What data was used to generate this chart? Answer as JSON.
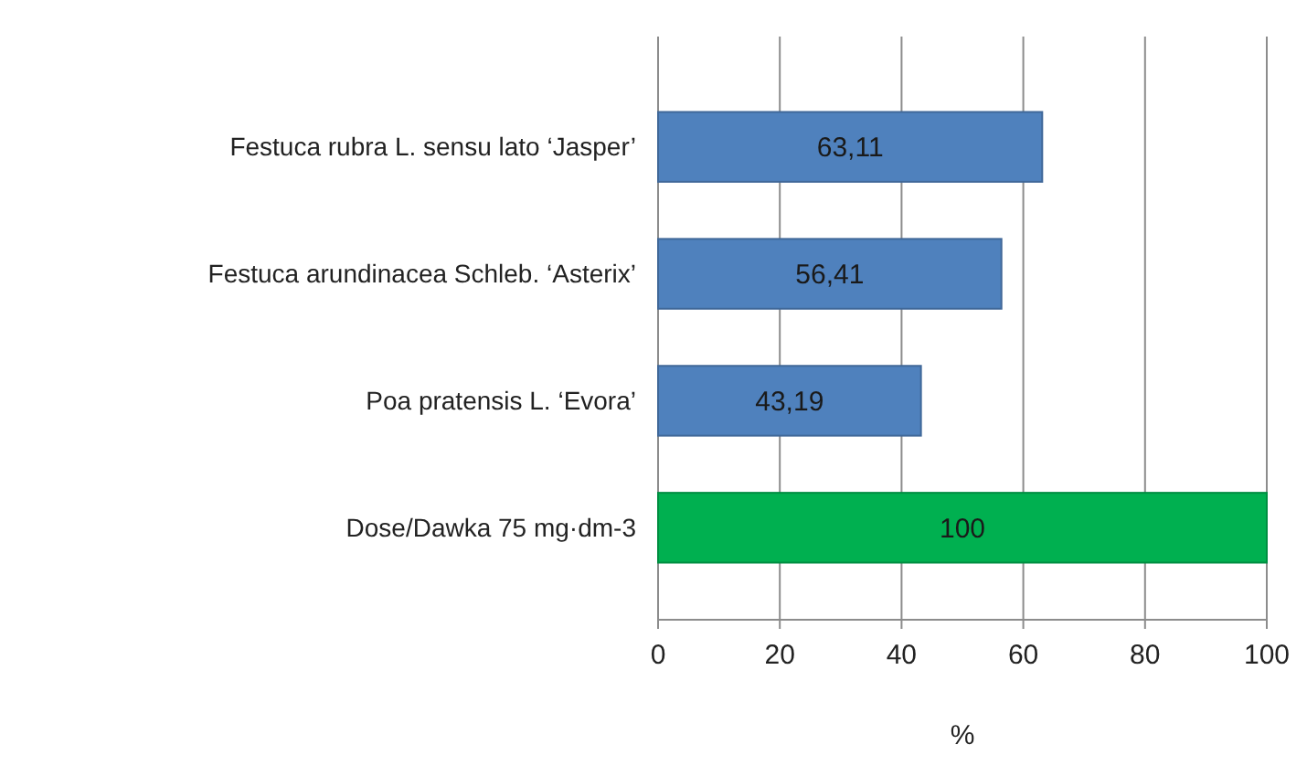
{
  "chart_data": {
    "type": "bar",
    "orientation": "horizontal",
    "categories": [
      "Festuca rubra L. sensu lato ‘Jasper’",
      "Festuca arundinacea Schleb. ‘Asterix’",
      "Poa pratensis L. ‘Evora’",
      "Dose/Dawka 75 mg·dm-3"
    ],
    "values": [
      63.11,
      56.41,
      43.19,
      100
    ],
    "value_labels": [
      "63,11",
      "56,41",
      "43,19",
      "100"
    ],
    "colors": [
      "#4f81bd",
      "#4f81bd",
      "#4f81bd",
      "#00b050"
    ],
    "xlim": [
      0,
      100
    ],
    "xticks": [
      0,
      20,
      40,
      60,
      80,
      100
    ],
    "xlabel": "%",
    "grid": "x"
  }
}
